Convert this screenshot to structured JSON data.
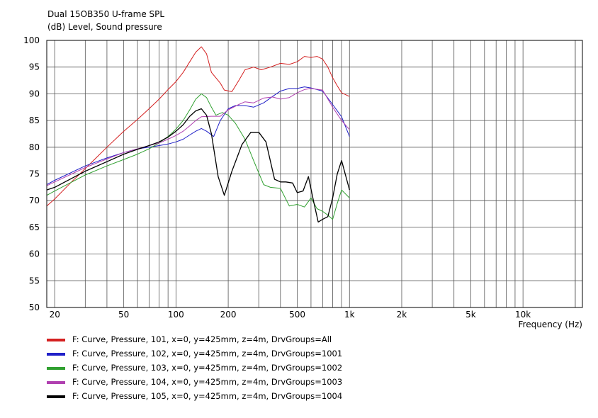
{
  "chart_data": {
    "type": "line",
    "title": "Dual 15OB350 U-frame SPL",
    "ylabel": "(dB)  Level, Sound pressure",
    "xlabel": "Frequency  (Hz)",
    "x_scale": "log",
    "xlim": [
      18,
      22000
    ],
    "ylim": [
      50,
      100
    ],
    "y_ticks": [
      50,
      55,
      60,
      65,
      70,
      75,
      80,
      85,
      90,
      95,
      100
    ],
    "x_tick_labels": [
      {
        "value": 20,
        "label": "20"
      },
      {
        "value": 50,
        "label": "50"
      },
      {
        "value": 100,
        "label": "100"
      },
      {
        "value": 200,
        "label": "200"
      },
      {
        "value": 500,
        "label": "500"
      },
      {
        "value": 1000,
        "label": "1k"
      },
      {
        "value": 2000,
        "label": "2k"
      },
      {
        "value": 5000,
        "label": "5k"
      },
      {
        "value": 10000,
        "label": "10k"
      }
    ],
    "grid": true,
    "legend_position": "bottom-left",
    "series": [
      {
        "name": "F: Curve, Pressure, 101, x=0, y=425mm, z=4m, DrvGroups=All",
        "color": "#d42020",
        "points": [
          [
            18,
            69.0
          ],
          [
            20,
            70.3
          ],
          [
            25,
            73.5
          ],
          [
            30,
            76.0
          ],
          [
            40,
            80.0
          ],
          [
            50,
            83.0
          ],
          [
            60,
            85.2
          ],
          [
            70,
            87.2
          ],
          [
            80,
            89.0
          ],
          [
            90,
            90.8
          ],
          [
            100,
            92.3
          ],
          [
            110,
            94.0
          ],
          [
            120,
            96.0
          ],
          [
            130,
            97.8
          ],
          [
            140,
            98.8
          ],
          [
            150,
            97.5
          ],
          [
            160,
            94.0
          ],
          [
            180,
            92.0
          ],
          [
            190,
            90.7
          ],
          [
            210,
            90.4
          ],
          [
            230,
            92.5
          ],
          [
            250,
            94.5
          ],
          [
            280,
            95.0
          ],
          [
            310,
            94.5
          ],
          [
            350,
            95.0
          ],
          [
            400,
            95.7
          ],
          [
            450,
            95.5
          ],
          [
            500,
            96.0
          ],
          [
            550,
            97.0
          ],
          [
            600,
            96.8
          ],
          [
            650,
            97.0
          ],
          [
            700,
            96.5
          ],
          [
            750,
            95.0
          ],
          [
            800,
            93.0
          ],
          [
            850,
            91.5
          ],
          [
            900,
            90.2
          ],
          [
            1000,
            89.5
          ]
        ]
      },
      {
        "name": "F: Curve, Pressure, 102, x=0, y=425mm, z=4m, DrvGroups=1001",
        "color": "#2020c8",
        "points": [
          [
            18,
            73.0
          ],
          [
            20,
            73.8
          ],
          [
            30,
            76.5
          ],
          [
            40,
            78.0
          ],
          [
            50,
            79.0
          ],
          [
            60,
            79.7
          ],
          [
            70,
            80.0
          ],
          [
            80,
            80.3
          ],
          [
            90,
            80.6
          ],
          [
            100,
            81.0
          ],
          [
            110,
            81.5
          ],
          [
            120,
            82.3
          ],
          [
            130,
            83.0
          ],
          [
            140,
            83.5
          ],
          [
            150,
            83.0
          ],
          [
            165,
            82.0
          ],
          [
            180,
            85.0
          ],
          [
            200,
            87.2
          ],
          [
            220,
            87.8
          ],
          [
            250,
            87.8
          ],
          [
            280,
            87.5
          ],
          [
            320,
            88.3
          ],
          [
            360,
            89.5
          ],
          [
            400,
            90.5
          ],
          [
            450,
            91.0
          ],
          [
            500,
            91.0
          ],
          [
            550,
            91.3
          ],
          [
            600,
            91.1
          ],
          [
            700,
            90.5
          ],
          [
            800,
            88.0
          ],
          [
            900,
            85.7
          ],
          [
            1000,
            82.0
          ]
        ]
      },
      {
        "name": "F: Curve, Pressure, 103, x=0, y=425mm, z=4m, DrvGroups=1002",
        "color": "#30a030",
        "points": [
          [
            18,
            71.0
          ],
          [
            20,
            71.8
          ],
          [
            30,
            74.8
          ],
          [
            40,
            76.5
          ],
          [
            50,
            77.7
          ],
          [
            60,
            78.7
          ],
          [
            70,
            79.7
          ],
          [
            80,
            80.8
          ],
          [
            90,
            82.0
          ],
          [
            100,
            83.4
          ],
          [
            110,
            85.0
          ],
          [
            120,
            87.0
          ],
          [
            130,
            89.0
          ],
          [
            140,
            90.0
          ],
          [
            150,
            89.3
          ],
          [
            160,
            87.5
          ],
          [
            170,
            86.0
          ],
          [
            185,
            86.5
          ],
          [
            200,
            86.0
          ],
          [
            220,
            84.5
          ],
          [
            250,
            81.5
          ],
          [
            280,
            77.5
          ],
          [
            320,
            73.0
          ],
          [
            350,
            72.5
          ],
          [
            400,
            72.3
          ],
          [
            450,
            69.0
          ],
          [
            500,
            69.3
          ],
          [
            550,
            68.8
          ],
          [
            600,
            70.5
          ],
          [
            650,
            68.5
          ],
          [
            700,
            68.0
          ],
          [
            750,
            67.3
          ],
          [
            800,
            66.5
          ],
          [
            850,
            69.5
          ],
          [
            900,
            72.0
          ],
          [
            1000,
            70.5
          ]
        ]
      },
      {
        "name": "F: Curve, Pressure, 104, x=0, y=425mm, z=4m, DrvGroups=1003",
        "color": "#b040b0",
        "points": [
          [
            18,
            72.8
          ],
          [
            20,
            73.5
          ],
          [
            30,
            76.2
          ],
          [
            40,
            77.8
          ],
          [
            50,
            79.0
          ],
          [
            60,
            79.7
          ],
          [
            70,
            80.3
          ],
          [
            80,
            80.8
          ],
          [
            90,
            81.5
          ],
          [
            100,
            82.2
          ],
          [
            110,
            83.0
          ],
          [
            120,
            84.0
          ],
          [
            130,
            85.0
          ],
          [
            140,
            85.7
          ],
          [
            160,
            85.8
          ],
          [
            180,
            85.8
          ],
          [
            200,
            87.0
          ],
          [
            230,
            88.0
          ],
          [
            250,
            88.5
          ],
          [
            280,
            88.3
          ],
          [
            320,
            89.2
          ],
          [
            360,
            89.4
          ],
          [
            400,
            89.0
          ],
          [
            450,
            89.3
          ],
          [
            500,
            90.2
          ],
          [
            550,
            90.8
          ],
          [
            600,
            91.0
          ],
          [
            700,
            90.7
          ],
          [
            800,
            87.5
          ],
          [
            900,
            85.0
          ],
          [
            1000,
            83.3
          ]
        ]
      },
      {
        "name": "F: Curve, Pressure, 105, x=0, y=425mm, z=4m, DrvGroups=1004",
        "color": "#000000",
        "points": [
          [
            18,
            72.0
          ],
          [
            20,
            72.5
          ],
          [
            30,
            75.5
          ],
          [
            40,
            77.3
          ],
          [
            50,
            78.7
          ],
          [
            60,
            79.6
          ],
          [
            70,
            80.3
          ],
          [
            80,
            81.0
          ],
          [
            90,
            81.9
          ],
          [
            100,
            83.0
          ],
          [
            110,
            84.2
          ],
          [
            120,
            85.8
          ],
          [
            130,
            86.8
          ],
          [
            140,
            87.2
          ],
          [
            150,
            86.0
          ],
          [
            160,
            82.5
          ],
          [
            175,
            74.5
          ],
          [
            190,
            71.0
          ],
          [
            210,
            75.5
          ],
          [
            240,
            80.5
          ],
          [
            270,
            82.8
          ],
          [
            300,
            82.8
          ],
          [
            330,
            81.0
          ],
          [
            370,
            74.0
          ],
          [
            400,
            73.5
          ],
          [
            430,
            73.5
          ],
          [
            470,
            73.3
          ],
          [
            500,
            71.5
          ],
          [
            540,
            71.8
          ],
          [
            580,
            74.5
          ],
          [
            620,
            70.0
          ],
          [
            660,
            66.0
          ],
          [
            700,
            66.5
          ],
          [
            750,
            67.0
          ],
          [
            800,
            70.5
          ],
          [
            850,
            75.0
          ],
          [
            900,
            77.5
          ],
          [
            1000,
            72.0
          ]
        ]
      }
    ]
  }
}
